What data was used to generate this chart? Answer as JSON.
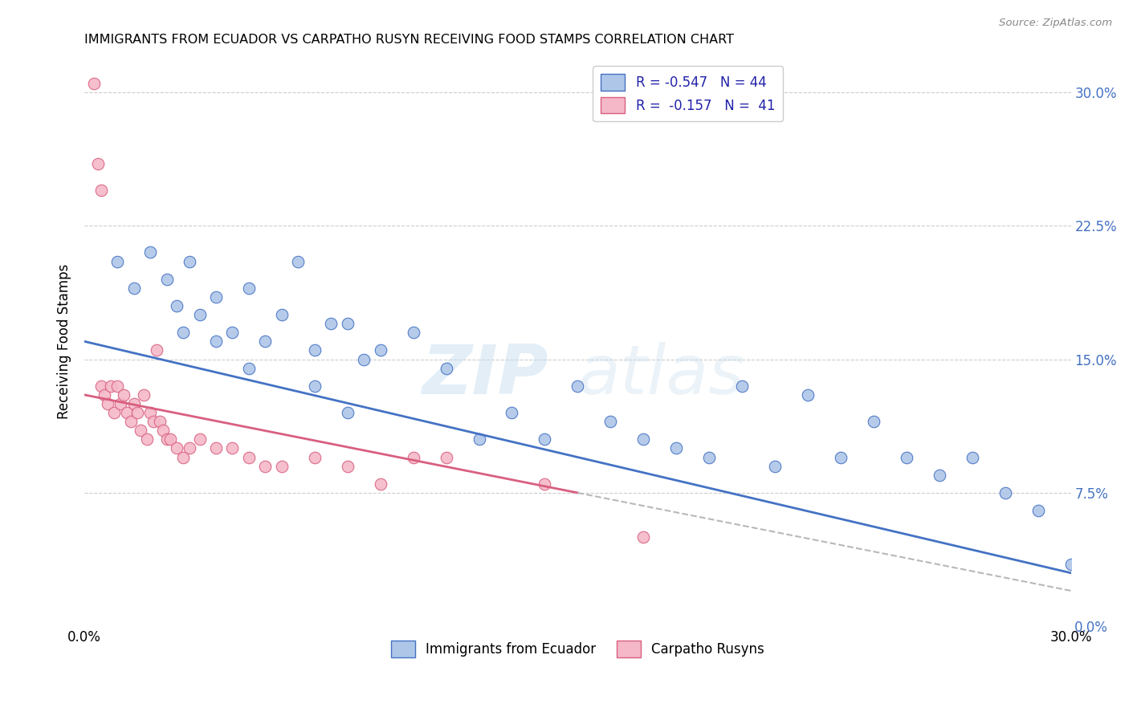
{
  "title": "IMMIGRANTS FROM ECUADOR VS CARPATHO RUSYN RECEIVING FOOD STAMPS CORRELATION CHART",
  "source": "Source: ZipAtlas.com",
  "ylabel": "Receiving Food Stamps",
  "ytick_values": [
    0.0,
    7.5,
    15.0,
    22.5,
    30.0
  ],
  "xlim": [
    0.0,
    30.0
  ],
  "ylim": [
    0.0,
    32.0
  ],
  "ymax_display": 30.0,
  "legend_R_ecuador": "-0.547",
  "legend_N_ecuador": "44",
  "legend_R_rusyn": "-0.157",
  "legend_N_rusyn": "41",
  "color_ecuador": "#aec6e8",
  "color_rusyn": "#f4b8c8",
  "line_color_ecuador": "#4472c4",
  "line_color_rusyn": "#d95f7f",
  "watermark_zip": "ZIP",
  "watermark_atlas": "atlas",
  "ecuador_x": [
    1.0,
    1.5,
    2.0,
    2.5,
    2.8,
    3.2,
    3.5,
    4.0,
    4.5,
    5.0,
    5.5,
    6.0,
    6.5,
    7.0,
    7.5,
    8.0,
    8.5,
    9.0,
    10.0,
    11.0,
    12.0,
    13.0,
    14.0,
    15.0,
    16.0,
    17.0,
    18.0,
    19.0,
    20.0,
    21.0,
    22.0,
    23.0,
    24.0,
    25.0,
    26.0,
    27.0,
    28.0,
    29.0,
    30.0,
    7.0,
    8.0,
    5.0,
    4.0,
    3.0
  ],
  "ecuador_y": [
    20.5,
    19.0,
    21.0,
    19.5,
    18.0,
    20.5,
    17.5,
    18.5,
    16.5,
    19.0,
    16.0,
    17.5,
    20.5,
    15.5,
    17.0,
    17.0,
    15.0,
    15.5,
    16.5,
    14.5,
    10.5,
    12.0,
    10.5,
    13.5,
    11.5,
    10.5,
    10.0,
    9.5,
    13.5,
    9.0,
    13.0,
    9.5,
    11.5,
    9.5,
    8.5,
    9.5,
    7.5,
    6.5,
    3.5,
    13.5,
    12.0,
    14.5,
    16.0,
    16.5
  ],
  "rusyn_x": [
    0.3,
    0.4,
    0.5,
    0.5,
    0.6,
    0.7,
    0.8,
    0.9,
    1.0,
    1.1,
    1.2,
    1.3,
    1.4,
    1.5,
    1.6,
    1.7,
    1.8,
    1.9,
    2.0,
    2.1,
    2.2,
    2.3,
    2.4,
    2.5,
    2.6,
    2.8,
    3.0,
    3.2,
    3.5,
    4.0,
    4.5,
    5.0,
    5.5,
    6.0,
    7.0,
    8.0,
    9.0,
    10.0,
    11.0,
    14.0,
    17.0
  ],
  "rusyn_y": [
    30.5,
    26.0,
    24.5,
    13.5,
    13.0,
    12.5,
    13.5,
    12.0,
    13.5,
    12.5,
    13.0,
    12.0,
    11.5,
    12.5,
    12.0,
    11.0,
    13.0,
    10.5,
    12.0,
    11.5,
    15.5,
    11.5,
    11.0,
    10.5,
    10.5,
    10.0,
    9.5,
    10.0,
    10.5,
    10.0,
    10.0,
    9.5,
    9.0,
    9.0,
    9.5,
    9.0,
    8.0,
    9.5,
    9.5,
    8.0,
    5.0
  ]
}
